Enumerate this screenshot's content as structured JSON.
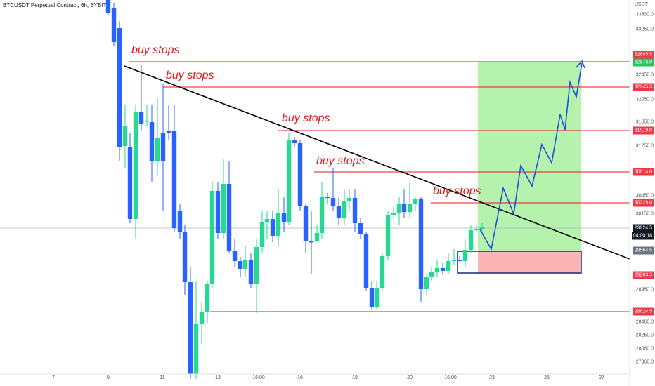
{
  "header": {
    "symbol": "BTCUSDT Perpetual Contract, 6h, BYBIT"
  },
  "axis": {
    "unit": "USDT",
    "y_ticks": [
      "33500.0",
      "33250.0",
      "32450.0",
      "32050.0",
      "31650.0",
      "31250.0",
      "30450.0",
      "30150.0",
      "28950.0",
      "28460.0",
      "28260.0",
      "28060.0",
      "27860.0"
    ],
    "x_ticks": [
      "7",
      "9",
      "11",
      "13",
      "16:00",
      "16",
      "18",
      "20",
      "16:00",
      "23",
      "25",
      "27"
    ]
  },
  "annotations": [
    "buy stops",
    "buy stops",
    "buy stops",
    "buy stops",
    "buy stops"
  ],
  "price_tags": [
    {
      "label": "32685.5",
      "bg": "#f23645",
      "fg": "#ffffff"
    },
    {
      "label": "32573.0",
      "bg": "#22c55e",
      "fg": "#ffffff"
    },
    {
      "label": "32245.5",
      "bg": "#f23645",
      "fg": "#ffffff"
    },
    {
      "label": "31519.0",
      "bg": "#f23645",
      "fg": "#ffffff"
    },
    {
      "label": "30814.0",
      "bg": "#f23645",
      "fg": "#ffffff"
    },
    {
      "label": "30329.0",
      "bg": "#f23645",
      "fg": "#ffffff"
    },
    {
      "label": "29924.5",
      "bg": "#131722",
      "fg": "#ffffff"
    },
    {
      "label": "04:00:18",
      "bg": "#131722",
      "fg": "#ffffff"
    },
    {
      "label": "29564.5",
      "bg": "#6b7280",
      "fg": "#ffffff"
    },
    {
      "label": "29203.5",
      "bg": "#f23645",
      "fg": "#ffffff"
    },
    {
      "label": "28624.5",
      "bg": "#f23645",
      "fg": "#ffffff"
    }
  ],
  "colors": {
    "bull": "#26d991",
    "bear": "#2962ff",
    "level": "#e01a1a",
    "profit_zone": "#a7f0a0",
    "stop_zone": "#fcb5b5",
    "projection": "#1f4fd8"
  }
}
